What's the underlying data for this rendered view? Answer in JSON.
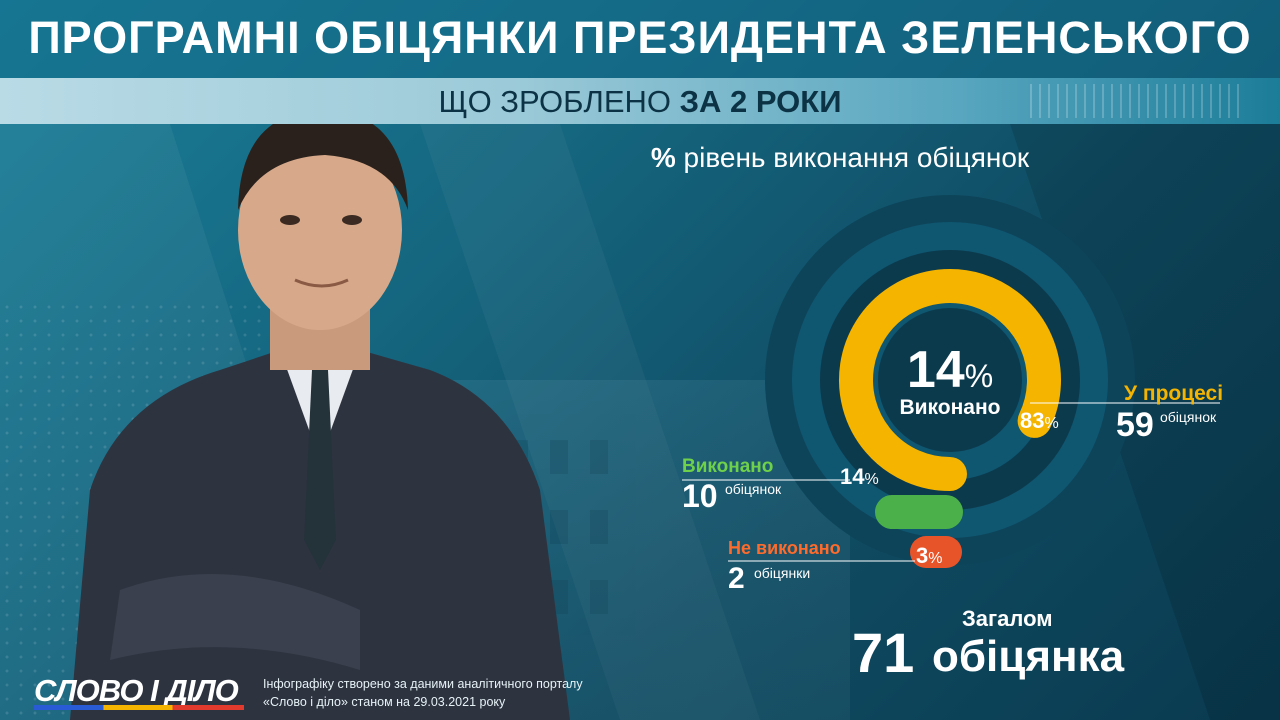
{
  "header": {
    "title": "ПРОГРАМНІ ОБІЦЯНКИ ПРЕЗИДЕНТА ЗЕЛЕНСЬКОГО",
    "subtitle_prefix": "ЩО ЗРОБЛЕНО ",
    "subtitle_bold": "ЗА 2 РОКИ"
  },
  "chart_label": {
    "symbol": "%",
    "text": " рівень виконання обіцянок"
  },
  "center": {
    "value": "14",
    "unit": "%",
    "label": "Виконано"
  },
  "categories": {
    "in_progress": {
      "label": "У процесі",
      "pct": "83",
      "pct_unit": "%",
      "count": "59",
      "count_unit": "обіцянок"
    },
    "done": {
      "label": "Виконано",
      "pct": "14",
      "pct_unit": "%",
      "count": "10",
      "count_unit": "обіцянок"
    },
    "not_done": {
      "label": "Не виконано",
      "pct": "3",
      "pct_unit": "%",
      "count": "2",
      "count_unit": "обіцянки"
    }
  },
  "total": {
    "label": "Загалом",
    "value": "71",
    "unit": "обіцянка"
  },
  "footer": {
    "logo": "СЛОВО І ДІЛО",
    "credit_line1": "Інфографіку створено за даними аналітичного порталу",
    "credit_line2": "«Слово і діло» станом на 29.03.2021 року"
  },
  "colors": {
    "in_progress": "#f5b400",
    "done": "#4cb04a",
    "not_done": "#e8542a",
    "ring_dark": "#0c3a4d",
    "ring_mid": "#0f5670"
  },
  "chart_data": {
    "type": "pie",
    "style": "radial-bars",
    "categories": [
      "У процесі",
      "Виконано",
      "Не виконано"
    ],
    "values": [
      83,
      14,
      3
    ],
    "counts": [
      59,
      10,
      2
    ],
    "total": 71,
    "unit": "%",
    "title": "% рівень виконання обіцянок"
  }
}
